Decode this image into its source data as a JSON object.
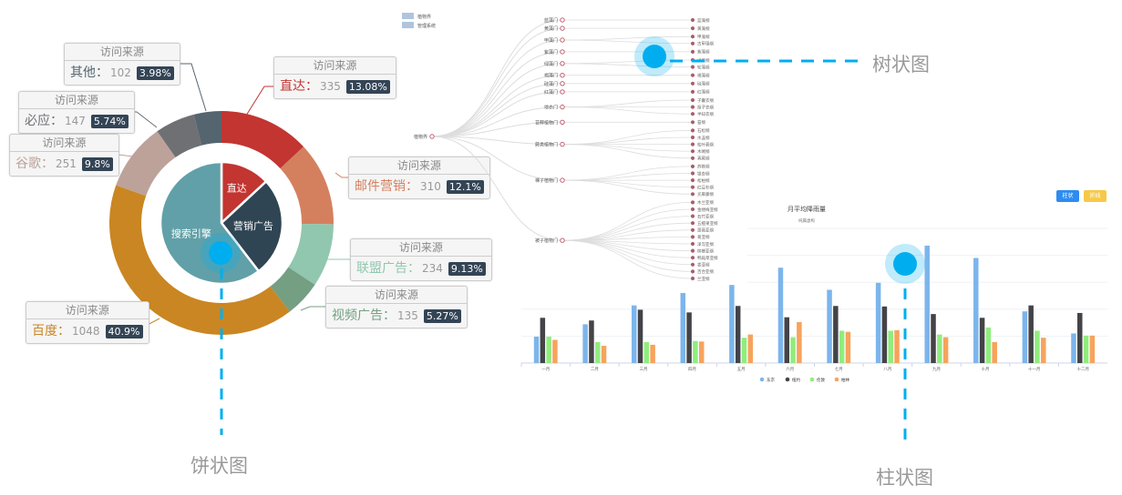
{
  "pie": {
    "caption": "饼状图",
    "tooltip_header": "访问来源",
    "inner": [
      {
        "name": "直达",
        "value": 335,
        "color": "#c23531"
      },
      {
        "name": "营销广告",
        "value": 679,
        "color": "#2f4554"
      },
      {
        "name": "搜索引擎",
        "value": 1548,
        "color": "#61a0a8"
      }
    ],
    "outer": [
      {
        "name": "直达",
        "value": 335,
        "pct": "13.08%",
        "color": "#c23531"
      },
      {
        "name": "邮件营销",
        "value": 310,
        "pct": "12.1%",
        "color": "#d4805f"
      },
      {
        "name": "联盟广告",
        "value": 234,
        "pct": "9.13%",
        "color": "#91c7ae"
      },
      {
        "name": "视频广告",
        "value": 135,
        "pct": "5.27%",
        "color": "#749f83"
      },
      {
        "name": "百度",
        "value": 1048,
        "pct": "40.9%",
        "color": "#ca8622"
      },
      {
        "name": "谷歌",
        "value": 251,
        "pct": "9.8%",
        "color": "#bda29a"
      },
      {
        "name": "必应",
        "value": 147,
        "pct": "5.74%",
        "color": "#6e7074"
      },
      {
        "name": "其他",
        "value": 102,
        "pct": "3.98%",
        "color": "#546570"
      }
    ]
  },
  "tree": {
    "caption": "树状图",
    "legend": [
      "植物界",
      "管理系统"
    ],
    "root": "植物界",
    "branches": [
      {
        "name": "蓝藻门",
        "children": [
          "蓝藻纲"
        ]
      },
      {
        "name": "黄藻门",
        "children": [
          "黄藻纲"
        ]
      },
      {
        "name": "甲藻门",
        "children": [
          "甲藻纲",
          "古甲藻纲"
        ]
      },
      {
        "name": "紫藻门",
        "children": [
          "紫藻纲"
        ]
      },
      {
        "name": "绿藻门",
        "children": [
          "绿藻纲",
          "轮藻纲"
        ]
      },
      {
        "name": "褐藻门",
        "children": [
          "褐藻纲"
        ]
      },
      {
        "name": "硅藻门",
        "children": [
          "硅藻纲"
        ]
      },
      {
        "name": "红藻门",
        "children": [
          "红藻纲"
        ]
      },
      {
        "name": "地衣门",
        "children": [
          "子囊衣纲",
          "担子衣纲",
          "半知衣纲"
        ]
      },
      {
        "name": "苔藓植物门",
        "children": [
          "苔纲"
        ]
      },
      {
        "name": "蕨类植物门",
        "children": [
          "石松纲",
          "水韭纲",
          "松叶蕨纲",
          "木贼纲",
          "真蕨纲"
        ]
      },
      {
        "name": "裸子植物门",
        "children": [
          "苏铁纲",
          "银杏纲",
          "松柏纲",
          "红豆杉纲",
          "买麻藤纲"
        ]
      },
      {
        "name": "被子植物门",
        "children": [
          "木兰亚纲",
          "金缕梅亚纲",
          "石竹亚纲",
          "五桠果亚纲",
          "蔷薇亚纲",
          "菊亚纲",
          "泽泻亚纲",
          "槟榔亚纲",
          "鸭跖草亚纲",
          "姜亚纲",
          "百合亚纲",
          "兰亚纲"
        ]
      }
    ]
  },
  "bar": {
    "caption": "柱状图",
    "buttons": [
      "柱状",
      "折线"
    ],
    "button_colors": [
      "#2d8cf0",
      "#f7c948"
    ],
    "chart_data": {
      "type": "bar",
      "title": "月平均降雨量",
      "subtitle": "纯属虚构",
      "categories": [
        "一月",
        "二月",
        "三月",
        "四月",
        "五月",
        "六月",
        "七月",
        "八月",
        "九月",
        "十月",
        "十一月",
        "十二月"
      ],
      "ylim": [
        0,
        250
      ],
      "grid": true,
      "legend_position": "bottom",
      "series": [
        {
          "name": "东京",
          "color": "#7cb5ec",
          "values": [
            49,
            72,
            107,
            130,
            145,
            177,
            136,
            149,
            218,
            195,
            96,
            55
          ]
        },
        {
          "name": "纽约",
          "color": "#434348",
          "values": [
            84,
            79,
            99,
            94,
            106,
            85,
            106,
            105,
            91,
            84,
            107,
            93
          ]
        },
        {
          "name": "伦敦",
          "color": "#90ed7d",
          "values": [
            49,
            39,
            39,
            41,
            47,
            48,
            60,
            60,
            53,
            66,
            60,
            51
          ]
        },
        {
          "name": "柏林",
          "color": "#f7a35c",
          "values": [
            43,
            32,
            34,
            40,
            53,
            76,
            58,
            61,
            48,
            39,
            47,
            51
          ]
        }
      ]
    }
  }
}
